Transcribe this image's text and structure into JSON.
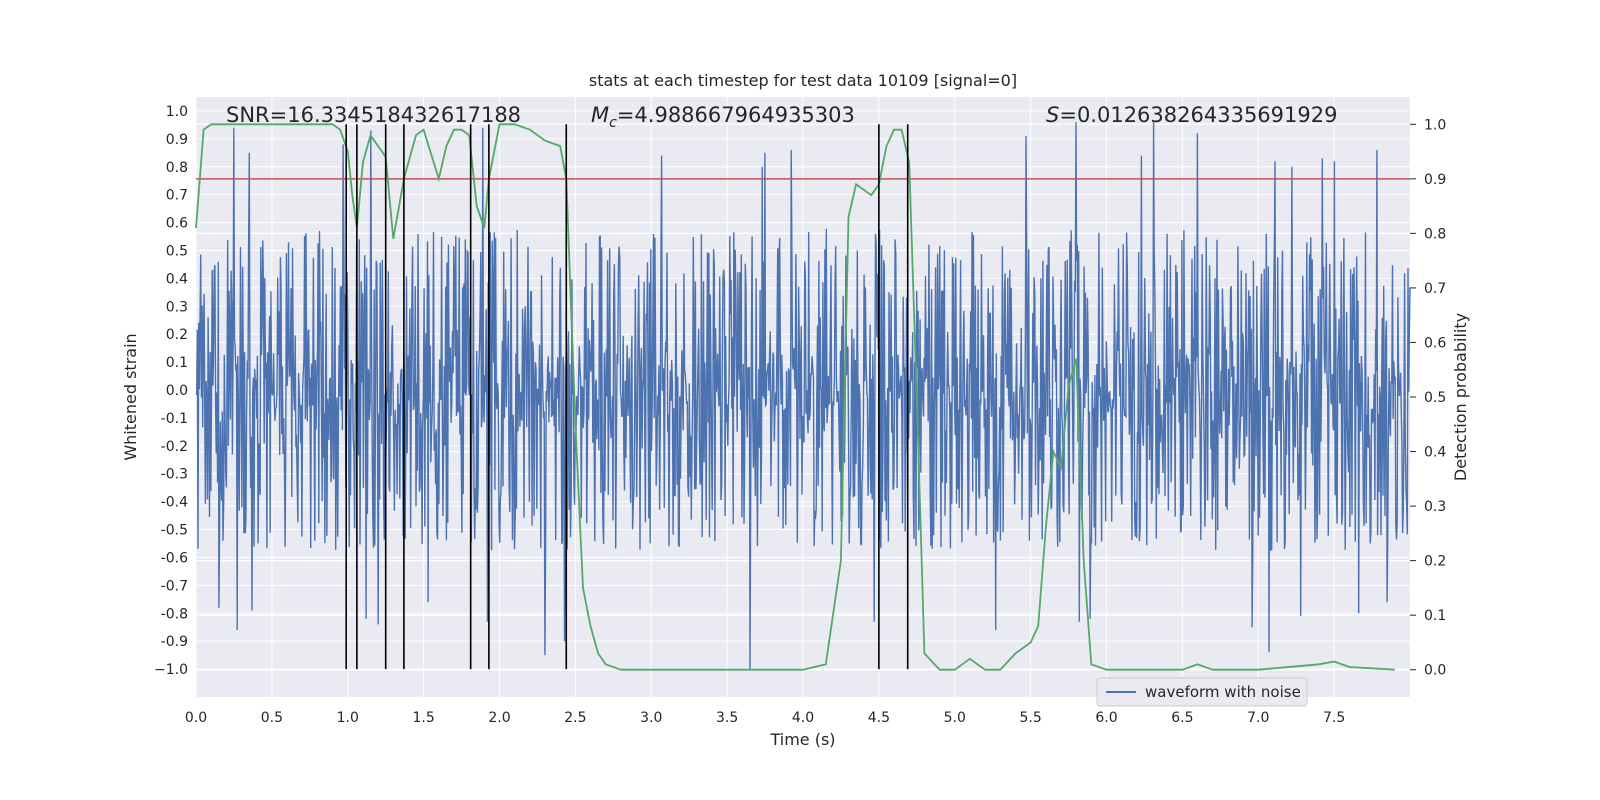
{
  "chart_data": {
    "type": "line",
    "title": "stats at each timestep for test data 10109 [signal=0]",
    "xlabel": "Time (s)",
    "ylabel_left": "Whitened strain",
    "ylabel_right": "Detection probability",
    "xlim": [
      0.0,
      8.0
    ],
    "ylim_left": [
      -1.1,
      1.05
    ],
    "ylim_right": [
      -0.05,
      1.05
    ],
    "x_ticks": [
      "0.0",
      "0.5",
      "1.0",
      "1.5",
      "2.0",
      "2.5",
      "3.0",
      "3.5",
      "4.0",
      "4.5",
      "5.0",
      "5.5",
      "6.0",
      "6.5",
      "7.0",
      "7.5"
    ],
    "x_tick_values": [
      0.0,
      0.5,
      1.0,
      1.5,
      2.0,
      2.5,
      3.0,
      3.5,
      4.0,
      4.5,
      5.0,
      5.5,
      6.0,
      6.5,
      7.0,
      7.5
    ],
    "y_left_ticks": [
      "1.0",
      "0.9",
      "0.8",
      "0.7",
      "0.6",
      "0.5",
      "0.4",
      "0.3",
      "0.2",
      "0.1",
      "0.0",
      "-0.1",
      "-0.2",
      "-0.3",
      "-0.4",
      "-0.5",
      "-0.6",
      "-0.7",
      "-0.8",
      "-0.9",
      "−1.0"
    ],
    "y_left_tick_values": [
      1.0,
      0.9,
      0.8,
      0.7,
      0.6,
      0.5,
      0.4,
      0.3,
      0.2,
      0.1,
      0.0,
      -0.1,
      -0.2,
      -0.3,
      -0.4,
      -0.5,
      -0.6,
      -0.7,
      -0.8,
      -0.9,
      -1.0
    ],
    "y_right_ticks": [
      "1.0",
      "0.9",
      "0.8",
      "0.7",
      "0.6",
      "0.5",
      "0.4",
      "0.3",
      "0.2",
      "0.1",
      "0.0"
    ],
    "y_right_tick_values": [
      1.0,
      0.9,
      0.8,
      0.7,
      0.6,
      0.5,
      0.4,
      0.3,
      0.2,
      0.1,
      0.0
    ],
    "annotations": {
      "snr": "SNR=16.334518432617188",
      "mc_symbol": "M",
      "mc_subscript": "c",
      "mc_value": "=4.988667964935303",
      "s_symbol": "S",
      "s_value": "=0.012638264335691929"
    },
    "legend": {
      "label": "waveform with noise",
      "placement": "lower-right"
    },
    "threshold": {
      "value": 0.9,
      "axis": "right",
      "color": "#c44e52"
    },
    "detection_markers": [
      0.99,
      1.06,
      1.25,
      1.37,
      1.81,
      1.93,
      2.44,
      4.5,
      4.69
    ],
    "waveform": {
      "name": "waveform with noise",
      "color": "#4c72b0",
      "t_start": 0.0,
      "t_end": 8.0,
      "envelope": 0.55,
      "spike_peaks": [
        [
          0.25,
          0.94
        ],
        [
          0.27,
          -0.86
        ],
        [
          0.15,
          -0.78
        ],
        [
          0.35,
          0.85
        ],
        [
          0.37,
          -0.79
        ],
        [
          1.12,
          -0.82
        ],
        [
          1.15,
          0.93
        ],
        [
          1.2,
          -0.84
        ],
        [
          0.97,
          0.88
        ],
        [
          1.53,
          -0.76
        ],
        [
          1.89,
          0.94
        ],
        [
          1.92,
          -0.83
        ],
        [
          2.3,
          -0.95
        ],
        [
          2.43,
          -0.9
        ],
        [
          3.07,
          0.84
        ],
        [
          3.65,
          -1.0
        ],
        [
          3.73,
          0.8
        ],
        [
          3.75,
          0.85
        ],
        [
          3.92,
          0.86
        ],
        [
          4.47,
          -0.83
        ],
        [
          5.27,
          -0.86
        ],
        [
          5.47,
          0.91
        ],
        [
          5.8,
          0.96
        ],
        [
          5.82,
          -0.83
        ],
        [
          5.89,
          -0.82
        ],
        [
          6.23,
          0.84
        ],
        [
          6.31,
          0.96
        ],
        [
          6.6,
          0.92
        ],
        [
          6.96,
          -0.85
        ],
        [
          7.07,
          -0.94
        ],
        [
          7.11,
          0.82
        ],
        [
          7.22,
          0.8
        ],
        [
          7.28,
          -0.81
        ],
        [
          7.42,
          0.83
        ],
        [
          7.5,
          0.82
        ],
        [
          7.66,
          -0.8
        ],
        [
          7.78,
          0.86
        ],
        [
          7.85,
          -0.76
        ]
      ],
      "seed": 10109
    },
    "probability": {
      "name": "detection probability",
      "color": "#55a868",
      "x": [
        0.0,
        0.05,
        0.1,
        0.15,
        0.2,
        0.3,
        0.5,
        0.7,
        0.8,
        0.9,
        0.95,
        1.0,
        1.03,
        1.06,
        1.1,
        1.15,
        1.2,
        1.25,
        1.3,
        1.37,
        1.45,
        1.5,
        1.6,
        1.65,
        1.7,
        1.75,
        1.8,
        1.85,
        1.9,
        1.93,
        2.0,
        2.05,
        2.1,
        2.2,
        2.3,
        2.4,
        2.44,
        2.5,
        2.55,
        2.6,
        2.65,
        2.7,
        2.8,
        2.9,
        3.0,
        3.5,
        4.0,
        4.15,
        4.25,
        4.3,
        4.35,
        4.45,
        4.5,
        4.55,
        4.6,
        4.65,
        4.7,
        4.75,
        4.8,
        4.9,
        5.0,
        5.05,
        5.1,
        5.15,
        5.2,
        5.25,
        5.3,
        5.4,
        5.5,
        5.55,
        5.6,
        5.65,
        5.7,
        5.75,
        5.8,
        5.85,
        5.9,
        6.0,
        6.5,
        6.6,
        6.7,
        7.0,
        7.4,
        7.5,
        7.6,
        7.9
      ],
      "y": [
        0.81,
        0.99,
        1.0,
        1.0,
        1.0,
        1.0,
        1.0,
        1.0,
        1.0,
        1.0,
        0.99,
        0.95,
        0.87,
        0.81,
        0.93,
        0.98,
        0.96,
        0.94,
        0.79,
        0.9,
        0.98,
        0.99,
        0.9,
        0.96,
        0.99,
        0.99,
        0.98,
        0.85,
        0.81,
        0.9,
        1.0,
        1.0,
        1.0,
        0.99,
        0.97,
        0.96,
        0.9,
        0.45,
        0.15,
        0.08,
        0.03,
        0.01,
        0.0,
        0.0,
        0.0,
        0.0,
        0.0,
        0.01,
        0.2,
        0.83,
        0.89,
        0.87,
        0.89,
        0.96,
        0.99,
        0.99,
        0.93,
        0.5,
        0.03,
        0.0,
        0.0,
        0.01,
        0.02,
        0.01,
        0.0,
        0.0,
        0.0,
        0.03,
        0.05,
        0.08,
        0.26,
        0.4,
        0.37,
        0.52,
        0.57,
        0.2,
        0.01,
        0.0,
        0.0,
        0.01,
        0.0,
        0.0,
        0.01,
        0.015,
        0.005,
        0.0
      ]
    },
    "colors": {
      "plot_bg": "#eaeaf2",
      "grid": "#ffffff",
      "marker": "#000000",
      "text": "#262626"
    }
  }
}
